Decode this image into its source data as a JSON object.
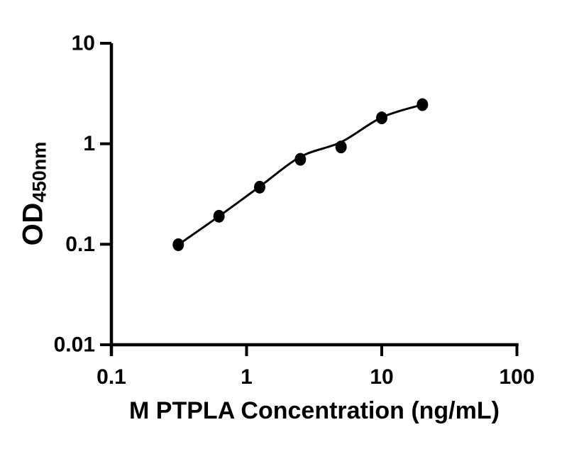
{
  "chart_data": {
    "type": "scatter",
    "title": "",
    "xlabel": "M PTPLA Concentration (ng/mL)",
    "ylabel": "OD",
    "ylabel_subscript": "450nm",
    "x_scale": "log",
    "y_scale": "log",
    "xlim": [
      0.1,
      100
    ],
    "ylim": [
      0.01,
      10
    ],
    "grid": false,
    "legend": false,
    "x_ticks": [
      {
        "value": 0.1,
        "label": "0.1"
      },
      {
        "value": 1,
        "label": "1"
      },
      {
        "value": 10,
        "label": "10"
      },
      {
        "value": 100,
        "label": "100"
      }
    ],
    "y_ticks": [
      {
        "value": 10,
        "label": "10"
      },
      {
        "value": 1,
        "label": "1"
      },
      {
        "value": 0.1,
        "label": "0.1"
      },
      {
        "value": 0.01,
        "label": "0.01"
      }
    ],
    "series": [
      {
        "marker": "filled-circle",
        "color": "#000000",
        "points": [
          {
            "x": 0.3125,
            "y": 0.099
          },
          {
            "x": 0.625,
            "y": 0.19
          },
          {
            "x": 1.25,
            "y": 0.37
          },
          {
            "x": 2.5,
            "y": 0.7
          },
          {
            "x": 5,
            "y": 0.93
          },
          {
            "x": 10,
            "y": 1.81
          },
          {
            "x": 20,
            "y": 2.45
          }
        ]
      }
    ],
    "fit_curve": {
      "color": "#000000",
      "points": [
        {
          "x": 0.3125,
          "y": 0.099
        },
        {
          "x": 0.625,
          "y": 0.19
        },
        {
          "x": 1.25,
          "y": 0.375
        },
        {
          "x": 2.5,
          "y": 0.74
        },
        {
          "x": 5,
          "y": 1.04
        },
        {
          "x": 10,
          "y": 1.83
        },
        {
          "x": 20,
          "y": 2.45
        }
      ]
    }
  },
  "colors": {
    "axis": "#000000",
    "marker": "#000000",
    "curve": "#000000",
    "background": "#ffffff"
  }
}
